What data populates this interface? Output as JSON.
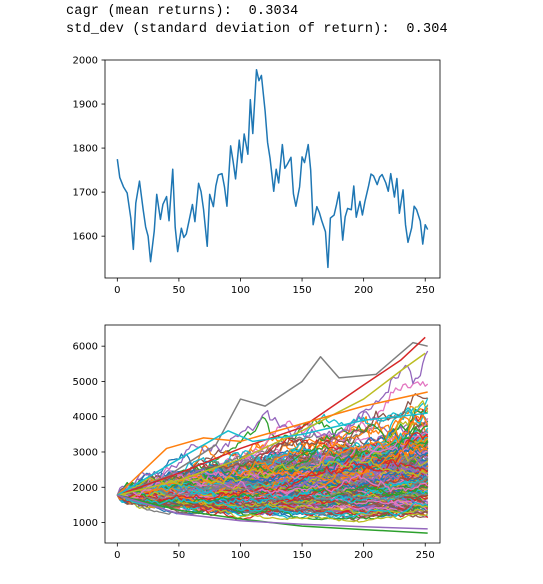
{
  "output": {
    "line1": "cagr (mean returns):  0.3034",
    "line2": "std_dev (standard deviation of return):  0.304"
  },
  "chart_data": [
    {
      "type": "line",
      "title": "",
      "xlabel": "",
      "ylabel": "",
      "xlim": [
        -10,
        262
      ],
      "ylim": [
        1505,
        2000
      ],
      "xticks": [
        0,
        50,
        100,
        150,
        200,
        250
      ],
      "yticks": [
        1600,
        1700,
        1800,
        1900,
        2000
      ],
      "grid": false,
      "series": [
        {
          "color": "#1f77b4",
          "x": [
            0,
            2,
            5,
            8,
            11,
            13,
            15,
            18,
            21,
            23,
            25,
            27,
            30,
            32,
            35,
            37,
            40,
            42,
            45,
            47,
            49,
            52,
            54,
            56,
            59,
            61,
            63,
            66,
            68,
            70,
            73,
            75,
            78,
            80,
            82,
            85,
            87,
            89,
            92,
            94,
            96,
            99,
            101,
            103,
            106,
            108,
            110,
            113,
            115,
            117,
            120,
            122,
            124,
            127,
            129,
            131,
            134,
            136,
            138,
            141,
            143,
            145,
            148,
            150,
            152,
            155,
            157,
            159,
            162,
            164,
            166,
            169,
            171,
            173,
            176,
            178,
            180,
            183,
            185,
            187,
            190,
            192,
            194,
            197,
            199,
            201,
            204,
            206,
            208,
            211,
            213,
            215,
            218,
            220,
            222,
            225,
            227,
            229,
            232,
            234,
            236,
            239,
            241,
            243,
            246,
            248,
            250,
            252
          ],
          "values": [
            1775,
            1733,
            1712,
            1698,
            1640,
            1570,
            1675,
            1725,
            1660,
            1621,
            1600,
            1542,
            1612,
            1695,
            1638,
            1672,
            1690,
            1635,
            1752,
            1620,
            1565,
            1618,
            1597,
            1605,
            1645,
            1672,
            1633,
            1720,
            1701,
            1661,
            1577,
            1695,
            1667,
            1714,
            1739,
            1742,
            1712,
            1668,
            1805,
            1770,
            1730,
            1818,
            1767,
            1832,
            1786,
            1910,
            1833,
            1978,
            1953,
            1965,
            1884,
            1813,
            1777,
            1702,
            1752,
            1721,
            1808,
            1754,
            1763,
            1779,
            1696,
            1668,
            1712,
            1780,
            1767,
            1808,
            1750,
            1626,
            1667,
            1654,
            1635,
            1610,
            1529,
            1641,
            1648,
            1672,
            1700,
            1591,
            1644,
            1663,
            1660,
            1714,
            1643,
            1679,
            1648,
            1678,
            1714,
            1741,
            1737,
            1717,
            1734,
            1740,
            1721,
            1702,
            1742,
            1689,
            1731,
            1652,
            1705,
            1626,
            1586,
            1619,
            1668,
            1660,
            1634,
            1582,
            1626,
            1615
          ]
        }
      ]
    },
    {
      "type": "line",
      "title": "",
      "xlabel": "",
      "ylabel": "",
      "xlim": [
        -10,
        262
      ],
      "ylim": [
        420,
        6600
      ],
      "xticks": [
        0,
        50,
        100,
        150,
        200,
        250
      ],
      "yticks": [
        1000,
        2000,
        3000,
        4000,
        5000,
        6000
      ],
      "grid": false,
      "start_value": 1775,
      "series_count": 1000,
      "series_highlights": [
        {
          "color": "#7f7f7f",
          "x": [
            0,
            40,
            80,
            100,
            120,
            150,
            165,
            180,
            210,
            240,
            252
          ],
          "values": [
            1775,
            2300,
            3200,
            4500,
            4300,
            5000,
            5700,
            5100,
            5200,
            6100,
            6000
          ]
        },
        {
          "color": "#d62728",
          "x": [
            0,
            50,
            100,
            150,
            200,
            230,
            250
          ],
          "values": [
            1775,
            2400,
            3100,
            3700,
            4900,
            5600,
            6250
          ]
        },
        {
          "color": "#bcbd22",
          "x": [
            0,
            50,
            100,
            150,
            200,
            230,
            250
          ],
          "values": [
            1775,
            2200,
            2800,
            3600,
            4500,
            5300,
            5800
          ]
        },
        {
          "color": "#ff7f0e",
          "x": [
            0,
            40,
            70,
            100,
            150,
            200,
            252
          ],
          "values": [
            1775,
            3100,
            3400,
            3300,
            3800,
            4300,
            4700
          ]
        },
        {
          "color": "#17becf",
          "x": [
            0,
            50,
            90,
            110,
            150,
            200,
            252
          ],
          "values": [
            1775,
            2800,
            3600,
            3300,
            3500,
            3900,
            4100
          ]
        },
        {
          "color": "#2ca02c",
          "x": [
            0,
            50,
            100,
            150,
            200,
            252
          ],
          "values": [
            1775,
            1350,
            1100,
            900,
            800,
            700
          ]
        },
        {
          "color": "#9467bd",
          "x": [
            0,
            50,
            100,
            150,
            200,
            252
          ],
          "values": [
            1775,
            1250,
            1050,
            950,
            880,
            820
          ]
        }
      ],
      "colors": [
        "#1f77b4",
        "#ff7f0e",
        "#2ca02c",
        "#d62728",
        "#9467bd",
        "#8c564b",
        "#e377c2",
        "#7f7f7f",
        "#bcbd22",
        "#17becf"
      ]
    }
  ]
}
